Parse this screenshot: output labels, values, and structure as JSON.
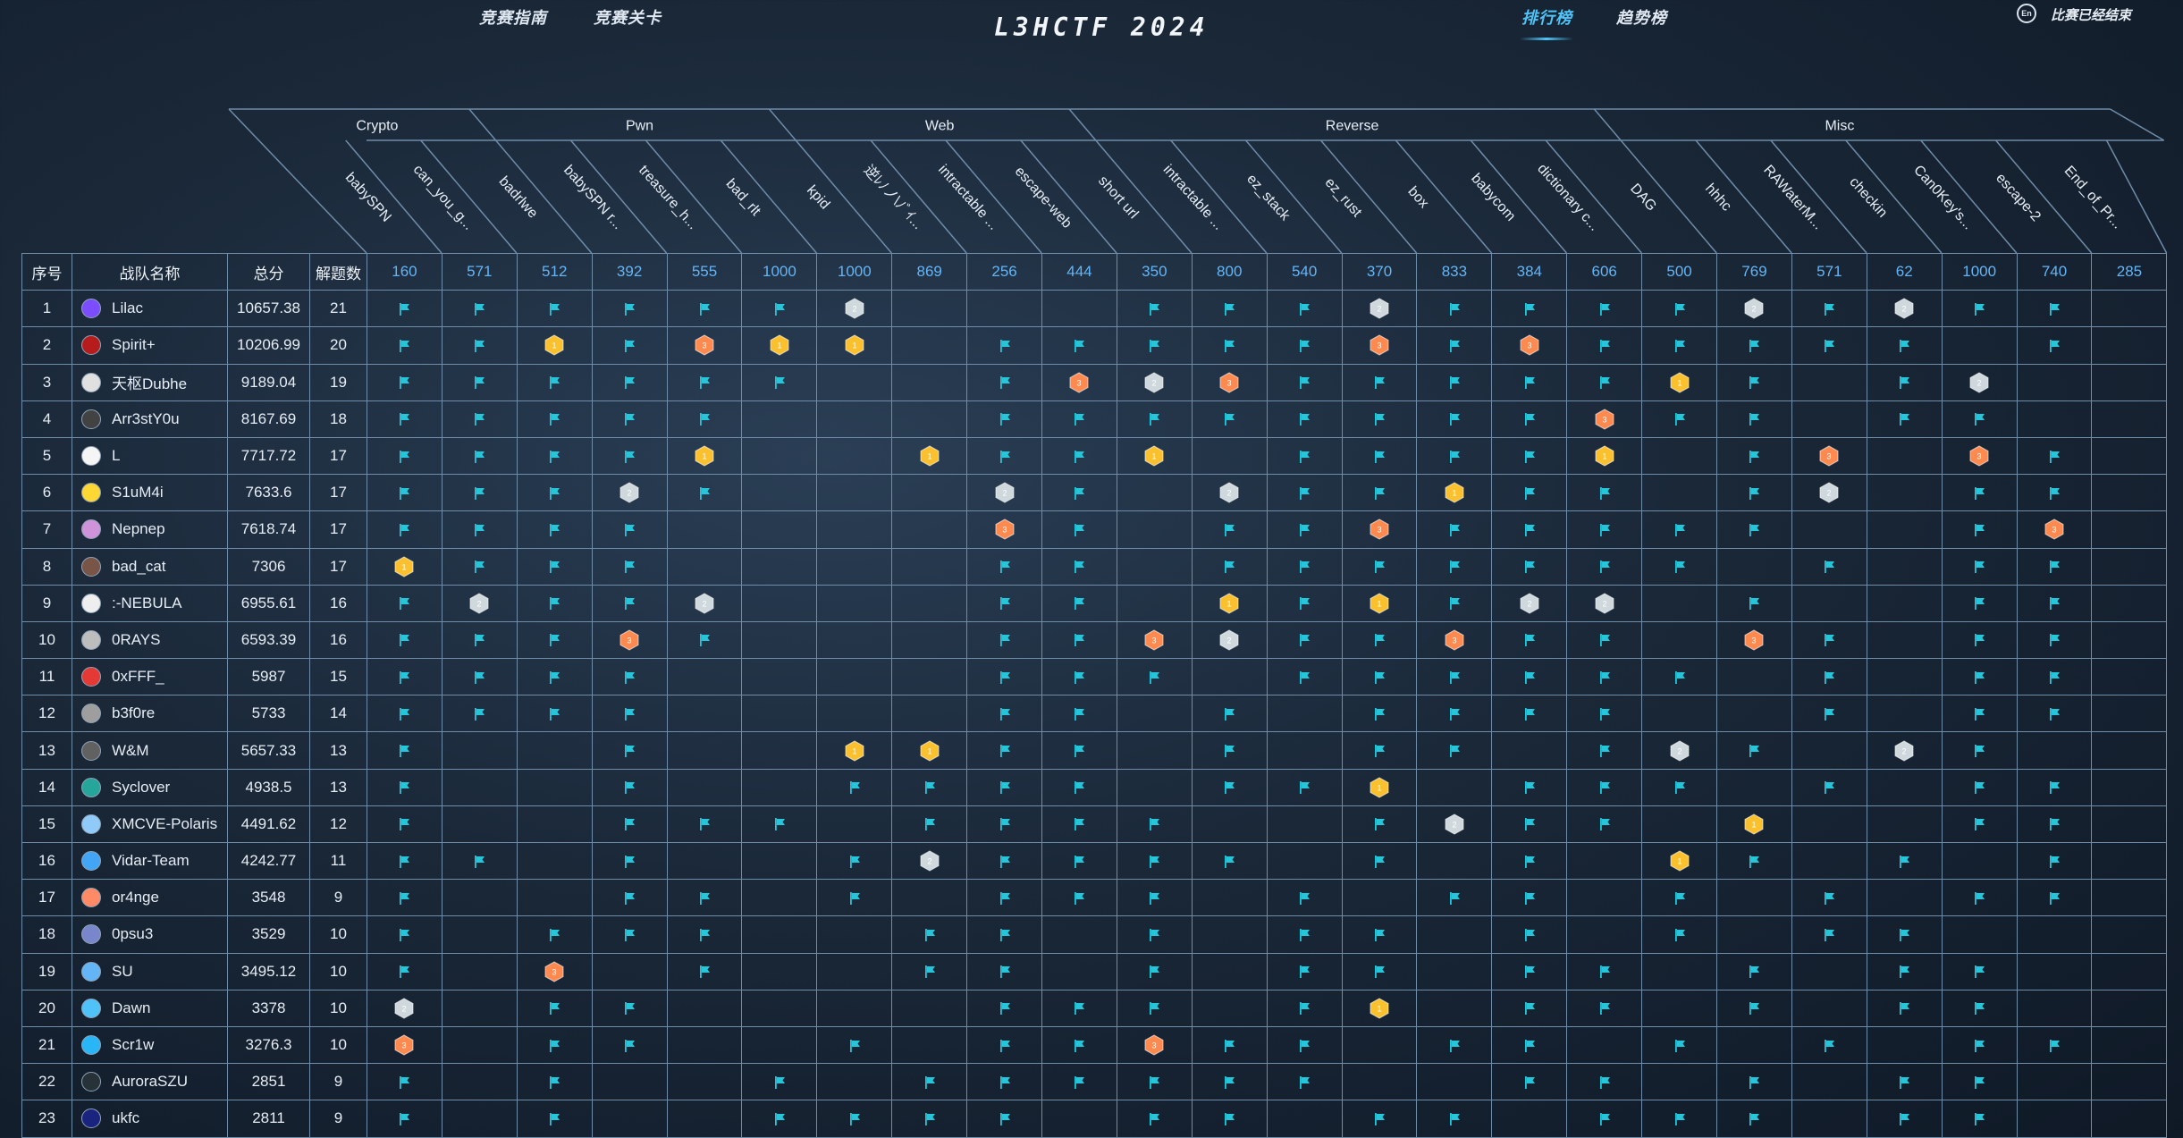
{
  "nav": {
    "left_items": [
      "竞赛指南",
      "竞赛关卡"
    ],
    "brand": "L3HCTF 2024",
    "right_items": [
      "排行榜",
      "趋势榜"
    ],
    "active": "排行榜",
    "lang_icon": "En",
    "status": "比赛已经结束"
  },
  "columns": {
    "rank": "序号",
    "team": "战队名称",
    "score": "总分",
    "solved": "解题数"
  },
  "categories": [
    {
      "name": "Crypto",
      "challenges": [
        {
          "name": "babySPN",
          "points": "160"
        },
        {
          "name": "can_you_g...",
          "points": "571"
        },
        {
          "name": "badrlwe",
          "points": "512"
        }
      ]
    },
    {
      "name": "Pwn",
      "challenges": [
        {
          "name": "babySPN r...",
          "points": "392"
        },
        {
          "name": "treasure_h...",
          "points": "555"
        },
        {
          "name": "bad_rlt",
          "points": "1000"
        },
        {
          "name": "kpid",
          "points": "1000"
        }
      ]
    },
    {
      "name": "Web",
      "challenges": [
        {
          "name": "逆ﾚﾉノ\\ﾉﾞｲ...",
          "points": "869"
        },
        {
          "name": "intractable ...",
          "points": "256"
        },
        {
          "name": "escape-web",
          "points": "444"
        },
        {
          "name": "short url",
          "points": "350"
        }
      ]
    },
    {
      "name": "Reverse",
      "challenges": [
        {
          "name": "intractable ...",
          "points": "800"
        },
        {
          "name": "ez_stack",
          "points": "540"
        },
        {
          "name": "ez_rust",
          "points": "370"
        },
        {
          "name": "box",
          "points": "833"
        },
        {
          "name": "babycom",
          "points": "384"
        },
        {
          "name": "dictionary c...",
          "points": "606"
        },
        {
          "name": "DAG",
          "points": "500"
        }
      ]
    },
    {
      "name": "Misc",
      "challenges": [
        {
          "name": "hhhc",
          "points": "769"
        },
        {
          "name": "RAWaterM...",
          "points": "571"
        },
        {
          "name": "checkin",
          "points": "62"
        },
        {
          "name": "Can0Key's...",
          "points": "1000"
        },
        {
          "name": "escape-2",
          "points": "740"
        },
        {
          "name": "End_of_Pr...",
          "points": "285"
        }
      ]
    }
  ],
  "teams": [
    {
      "rank": "1",
      "name": "Lilac",
      "score": "10657.38",
      "solved": "21",
      "cells": "ffffffs000fffsffffsfsff",
      "avatar": "#7c4dff"
    },
    {
      "rank": "2",
      "name": "Spirit+",
      "score": "10206.99",
      "solved": "20",
      "cells": "ffgfbgg0fffffbfbfffff0f",
      "avatar": "#b71c1c"
    },
    {
      "rank": "3",
      "name": "天枢Dubhe",
      "score": "9189.04",
      "solved": "19",
      "cells": "ffffff00fbsbfffffgf0fs",
      "avatar": "#e0e0e0"
    },
    {
      "rank": "4",
      "name": "Arr3stY0u",
      "score": "8167.69",
      "solved": "18",
      "cells": "fffff000ffffffffbff0ff",
      "avatar": "#424242"
    },
    {
      "rank": "5",
      "name": "L",
      "score": "7717.72",
      "solved": "17",
      "cells": "ffffg00gffg0ffffg0fb0bf",
      "avatar": "#f5f5f5"
    },
    {
      "rank": "6",
      "name": "S1uM4i",
      "score": "7633.6",
      "solved": "17",
      "cells": "fffsf000sf0sffgff0fs0ff",
      "avatar": "#fdd835"
    },
    {
      "rank": "7",
      "name": "Nepnep",
      "score": "7618.74",
      "solved": "17",
      "cells": "ffff0000bf0ffbfffff00fb",
      "avatar": "#ce93d8"
    },
    {
      "rank": "8",
      "name": "bad_cat",
      "score": "7306",
      "solved": "17",
      "cells": "gfff0000ff0fffffff0f0ff",
      "avatar": "#795548"
    },
    {
      "rank": "9",
      "name": ":-NEBULA",
      "score": "6955.61",
      "solved": "16",
      "cells": "fsffs000ff0gfgfss0f00ff",
      "avatar": "#eeeeee"
    },
    {
      "rank": "10",
      "name": "0RAYS",
      "score": "6593.39",
      "solved": "16",
      "cells": "fffbf000ffbsffbff0bf0ff",
      "avatar": "#bdbdbd"
    },
    {
      "rank": "11",
      "name": "0xFFF_",
      "score": "5987",
      "solved": "15",
      "cells": "ffff0000fff0ffffff0f0ff",
      "avatar": "#e53935"
    },
    {
      "rank": "12",
      "name": "b3f0re",
      "score": "5733",
      "solved": "14",
      "cells": "ffff0000ff0f0ffff00f0ff",
      "avatar": "#9e9e9e"
    },
    {
      "rank": "13",
      "name": "W&M",
      "score": "5657.33",
      "solved": "13",
      "cells": "f00f00ggff0f0ff0fsf0sf",
      "avatar": "#616161"
    },
    {
      "rank": "14",
      "name": "Syclover",
      "score": "4938.5",
      "solved": "13",
      "cells": "f00f00ffff0ffg0fff0f0ff",
      "avatar": "#26a69a"
    },
    {
      "rank": "15",
      "name": "XMCVE-Polaris",
      "score": "4491.62",
      "solved": "12",
      "cells": "f00fff0ffff00fsff0g00ff",
      "avatar": "#90caf9"
    },
    {
      "rank": "16",
      "name": "Vidar-Team",
      "score": "4242.77",
      "solved": "11",
      "cells": "ff0f00fsffff0f0f0gf0f0f",
      "avatar": "#42a5f5"
    },
    {
      "rank": "17",
      "name": "or4nge",
      "score": "3548",
      "solved": "9",
      "cells": "f00ff0f0fff0f0ff0f0f0ff",
      "avatar": "#ff8a65"
    },
    {
      "rank": "18",
      "name": "0psu3",
      "score": "3529",
      "solved": "10",
      "cells": "f0fff00ff0f0ff0f0f0ff",
      "avatar": "#7986cb"
    },
    {
      "rank": "19",
      "name": "SU",
      "score": "3495.12",
      "solved": "10",
      "cells": "f0b0f00ff0f0ff0ff0f0ff",
      "avatar": "#64b5f6"
    },
    {
      "rank": "20",
      "name": "Dawn",
      "score": "3378",
      "solved": "10",
      "cells": "s0ff0000fff0fg0ff0f0ff",
      "avatar": "#4fc3f7"
    },
    {
      "rank": "21",
      "name": "Scr1w",
      "score": "3276.3",
      "solved": "10",
      "cells": "b0ff00f0ffbff0ff0f0f0ff",
      "avatar": "#29b6f6"
    },
    {
      "rank": "22",
      "name": "AuroraSZU",
      "score": "2851",
      "solved": "9",
      "cells": "f0f00f0ffffff00ff0f0ff",
      "avatar": "#263238"
    },
    {
      "rank": "23",
      "name": "ukfc",
      "score": "2811",
      "solved": "9",
      "cells": "f0f00ffff0ff0ff0fff0ff",
      "avatar": "#1a237e"
    }
  ],
  "colors": {
    "flag": "#26c6da",
    "gold": "#fbc02d",
    "silver": "#cfd8dc",
    "bronze": "#ff8a50",
    "grid": "#6f8ca8"
  }
}
